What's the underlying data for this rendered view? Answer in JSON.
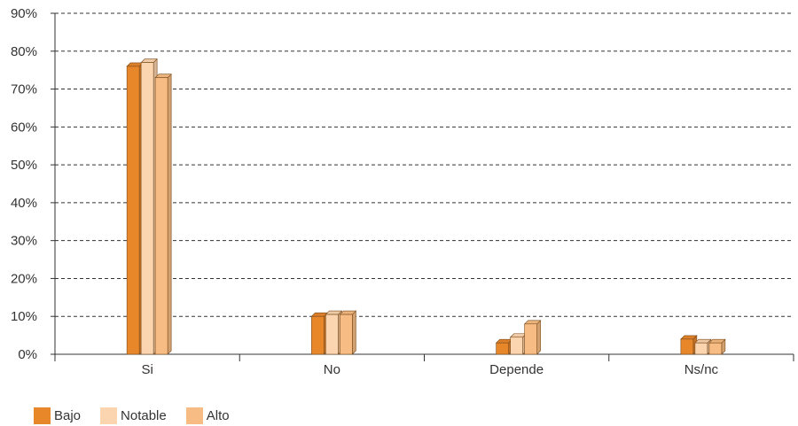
{
  "chart_data": {
    "type": "bar",
    "categories": [
      "Si",
      "No",
      "Depende",
      "Ns/nc"
    ],
    "series": [
      {
        "name": "Bajo",
        "values": [
          76,
          10,
          3,
          4
        ],
        "color": "#e8862a"
      },
      {
        "name": "Notable",
        "values": [
          77,
          10.5,
          4.5,
          3
        ],
        "color": "#fad5b0"
      },
      {
        "name": "Alto",
        "values": [
          73,
          10.5,
          8,
          3
        ],
        "color": "#f7bc83"
      }
    ],
    "ylim": [
      0,
      90
    ],
    "yticks": [
      "0%",
      "10%",
      "20%",
      "30%",
      "40%",
      "50%",
      "60%",
      "70%",
      "80%",
      "90%"
    ],
    "grid": true,
    "legend_position": "bottom-left"
  }
}
